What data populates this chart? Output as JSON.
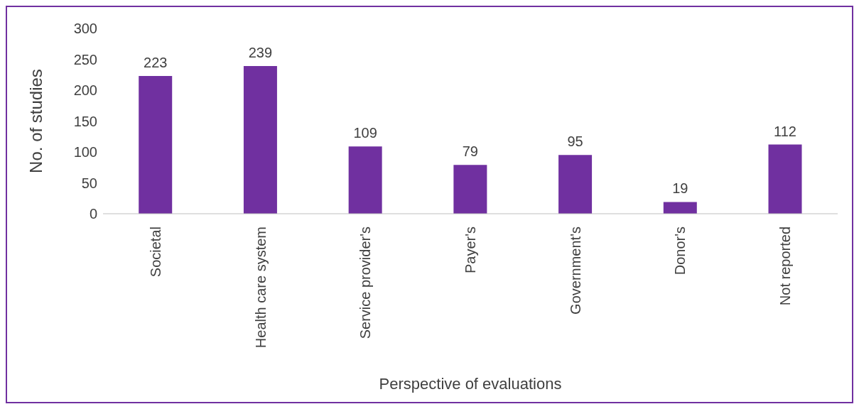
{
  "chart_data": {
    "type": "bar",
    "xlabel": "Perspective of evaluations",
    "ylabel": "No. of studies",
    "categories": [
      "Societal",
      "Health care system",
      "Service provider's",
      "Payer's",
      "Government's",
      "Donor's",
      "Not reported"
    ],
    "values": [
      223,
      239,
      109,
      79,
      95,
      19,
      112
    ],
    "color": "#7030a0",
    "ylim": [
      0,
      300
    ],
    "yticks": [
      0,
      50,
      100,
      150,
      200,
      250,
      300
    ],
    "grid": false,
    "data_labels": true
  }
}
